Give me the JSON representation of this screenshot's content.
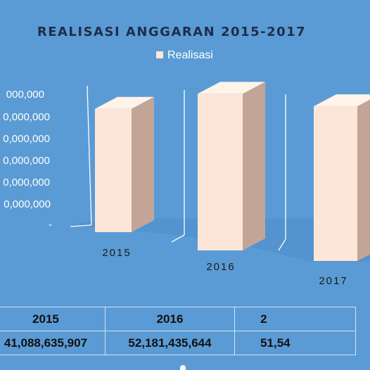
{
  "chart_data": {
    "type": "bar",
    "title": "REALISASI ANGGARAN 2015-2017",
    "legend": {
      "label": "Realisasi",
      "position": "top"
    },
    "categories": [
      "2015",
      "2016",
      "2017"
    ],
    "series": [
      {
        "name": "Realisasi",
        "values": [
          41088635907,
          52181435644,
          51540000000
        ]
      }
    ],
    "y_tick_labels": [
      "-",
      "0,000,000",
      "0,000,000",
      "0,000,000",
      "0,000,000",
      "0,000,000",
      "000,000"
    ],
    "ylim": [
      0,
      60000000000
    ],
    "xlabel": "",
    "ylabel": "",
    "grid": false,
    "style": "3d-column",
    "colors": {
      "background": "#5b9bd5",
      "bar_front": "#fde6d8",
      "bar_side": "#c2a597",
      "bar_top": "#fff3ea",
      "floor": "#4a8ac8"
    }
  },
  "table": {
    "headers": [
      "2015",
      "2016",
      "2"
    ],
    "values": [
      "41,088,635,907",
      "52,181,435,644",
      "51,54"
    ]
  }
}
